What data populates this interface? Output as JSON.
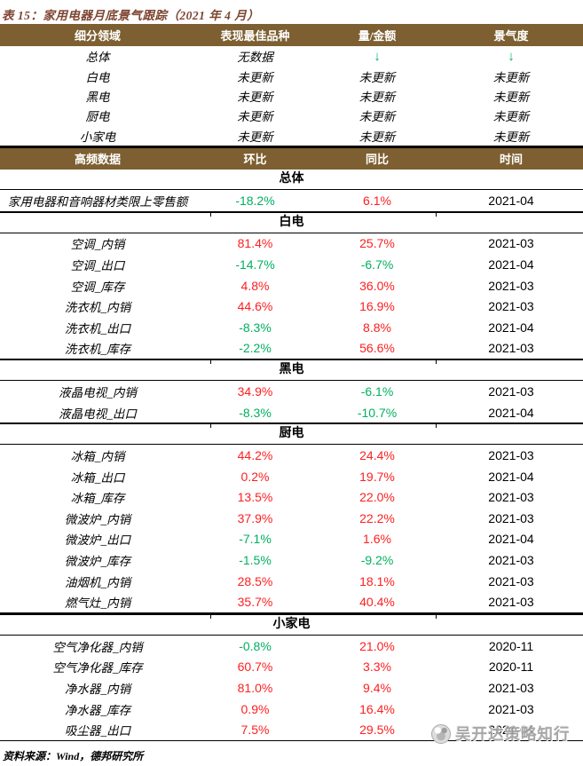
{
  "title": "表 15：家用电器月底景气跟踪（2021 年 4 月）",
  "colors": {
    "header_bg": "#7d5f31",
    "header_text": "#ffffff",
    "title_color": "#7d4531",
    "positive_red": "#fe2020",
    "negative_green": "#00b05f",
    "watermark_gray": "#a0a0a0",
    "rule_black": "#000000"
  },
  "summary_table": {
    "headers": [
      "细分领域",
      "表现最佳品种",
      "量/金额",
      "景气度"
    ],
    "rows": [
      {
        "cells": [
          {
            "text": "总体",
            "tone": "plain"
          },
          {
            "text": "无数据",
            "tone": "plain"
          },
          {
            "text": "↓",
            "tone": "down"
          },
          {
            "text": "↓",
            "tone": "down"
          }
        ]
      },
      {
        "cells": [
          {
            "text": "白电",
            "tone": "plain"
          },
          {
            "text": "未更新",
            "tone": "plain"
          },
          {
            "text": "未更新",
            "tone": "plain"
          },
          {
            "text": "未更新",
            "tone": "plain"
          }
        ]
      },
      {
        "cells": [
          {
            "text": "黑电",
            "tone": "plain"
          },
          {
            "text": "未更新",
            "tone": "plain"
          },
          {
            "text": "未更新",
            "tone": "plain"
          },
          {
            "text": "未更新",
            "tone": "plain"
          }
        ]
      },
      {
        "cells": [
          {
            "text": "厨电",
            "tone": "plain"
          },
          {
            "text": "未更新",
            "tone": "plain"
          },
          {
            "text": "未更新",
            "tone": "plain"
          },
          {
            "text": "未更新",
            "tone": "plain"
          }
        ]
      },
      {
        "cells": [
          {
            "text": "小家电",
            "tone": "plain"
          },
          {
            "text": "未更新",
            "tone": "plain"
          },
          {
            "text": "未更新",
            "tone": "plain"
          },
          {
            "text": "未更新",
            "tone": "plain"
          }
        ]
      }
    ]
  },
  "detail_table": {
    "headers": [
      "高频数据",
      "环比",
      "同比",
      "时间"
    ],
    "sections": [
      {
        "name": "总体",
        "rows": [
          {
            "label": "家用电器和音响器材类限上零售额",
            "mom": "-18.2%",
            "yoy": "6.1%",
            "date": "2021-04"
          }
        ]
      },
      {
        "name": "白电",
        "rows": [
          {
            "label": "空调_内销",
            "mom": "81.4%",
            "yoy": "25.7%",
            "date": "2021-03"
          },
          {
            "label": "空调_出口",
            "mom": "-14.7%",
            "yoy": "-6.7%",
            "date": "2021-04"
          },
          {
            "label": "空调_库存",
            "mom": "4.8%",
            "yoy": "36.0%",
            "date": "2021-03"
          },
          {
            "label": "洗衣机_内销",
            "mom": "44.6%",
            "yoy": "16.9%",
            "date": "2021-03"
          },
          {
            "label": "洗衣机_出口",
            "mom": "-8.3%",
            "yoy": "8.8%",
            "date": "2021-04"
          },
          {
            "label": "洗衣机_库存",
            "mom": "-2.2%",
            "yoy": "56.6%",
            "date": "2021-03"
          }
        ]
      },
      {
        "name": "黑电",
        "rows": [
          {
            "label": "液晶电视_内销",
            "mom": "34.9%",
            "yoy": "-6.1%",
            "date": "2021-03"
          },
          {
            "label": "液晶电视_出口",
            "mom": "-8.3%",
            "yoy": "-10.7%",
            "date": "2021-04"
          }
        ]
      },
      {
        "name": "厨电",
        "rows": [
          {
            "label": "冰箱_内销",
            "mom": "44.2%",
            "yoy": "24.4%",
            "date": "2021-03"
          },
          {
            "label": "冰箱_出口",
            "mom": "0.2%",
            "yoy": "19.7%",
            "date": "2021-04"
          },
          {
            "label": "冰箱_库存",
            "mom": "13.5%",
            "yoy": "22.0%",
            "date": "2021-03"
          },
          {
            "label": "微波炉_内销",
            "mom": "37.9%",
            "yoy": "22.2%",
            "date": "2021-03"
          },
          {
            "label": "微波炉_出口",
            "mom": "-7.1%",
            "yoy": "1.6%",
            "date": "2021-04"
          },
          {
            "label": "微波炉_库存",
            "mom": "-1.5%",
            "yoy": "-9.2%",
            "date": "2021-03"
          },
          {
            "label": "油烟机_内销",
            "mom": "28.5%",
            "yoy": "18.1%",
            "date": "2021-03"
          },
          {
            "label": "燃气灶_内销",
            "mom": "35.7%",
            "yoy": "40.4%",
            "date": "2021-03"
          }
        ]
      },
      {
        "name": "小家电",
        "rows": [
          {
            "label": "空气净化器_内销",
            "mom": "-0.8%",
            "yoy": "21.0%",
            "date": "2020-11"
          },
          {
            "label": "空气净化器_库存",
            "mom": "60.7%",
            "yoy": "3.3%",
            "date": "2020-11"
          },
          {
            "label": "净水器_内销",
            "mom": "81.0%",
            "yoy": "9.4%",
            "date": "2021-03"
          },
          {
            "label": "净水器_库存",
            "mom": "0.9%",
            "yoy": "16.4%",
            "date": "2021-03"
          },
          {
            "label": "吸尘器_出口",
            "mom": "7.5%",
            "yoy": "29.5%",
            "date": "2021-04"
          }
        ]
      }
    ]
  },
  "footer": {
    "source_text": "资料来源：Wind，德邦研究所"
  },
  "watermark": {
    "text": "吴开达策略知行",
    "logo": "panda-logo-icon"
  }
}
